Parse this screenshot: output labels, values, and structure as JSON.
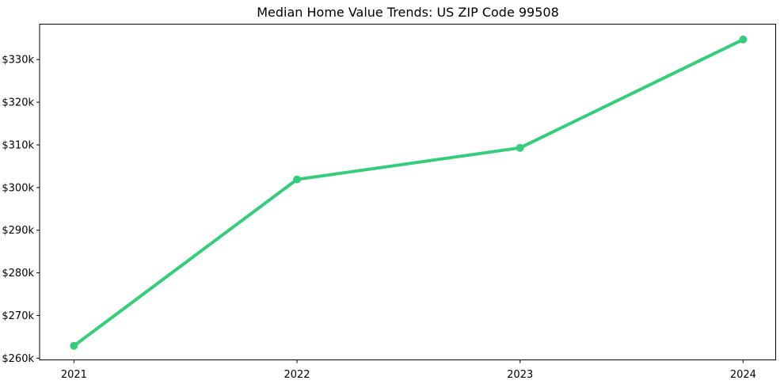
{
  "figure": {
    "title": "Median Home Value Trends: US ZIP Code 99508"
  },
  "chart_data": {
    "type": "line",
    "title": "Median Home Value Trends: US ZIP Code 99508",
    "x": [
      2021,
      2022,
      2023,
      2024
    ],
    "y_usd_k": [
      262.9,
      301.9,
      309.3,
      334.7
    ],
    "y_unit": "USD thousands",
    "xlabel": "",
    "ylabel": "",
    "xticks": {
      "values": [
        2021,
        2022,
        2023,
        2024
      ],
      "labels": [
        "2021",
        "2022",
        "2023",
        "2024"
      ]
    },
    "yticks": {
      "values_usd_k": [
        260,
        270,
        280,
        290,
        300,
        310,
        320,
        330
      ],
      "labels": [
        "$260k",
        "$270k",
        "$280k",
        "$290k",
        "$300k",
        "$310k",
        "$320k",
        "$330k"
      ]
    },
    "xlim": [
      2020.846,
      2024.146
    ],
    "ylim_usd_k": [
      259.6,
      338.3
    ],
    "grid": false,
    "legend": "none",
    "colors": {
      "line": "#35cd7b",
      "marker": "#35cd7b",
      "text": "#000000",
      "spine": "#000000",
      "background": "#ffffff"
    }
  }
}
